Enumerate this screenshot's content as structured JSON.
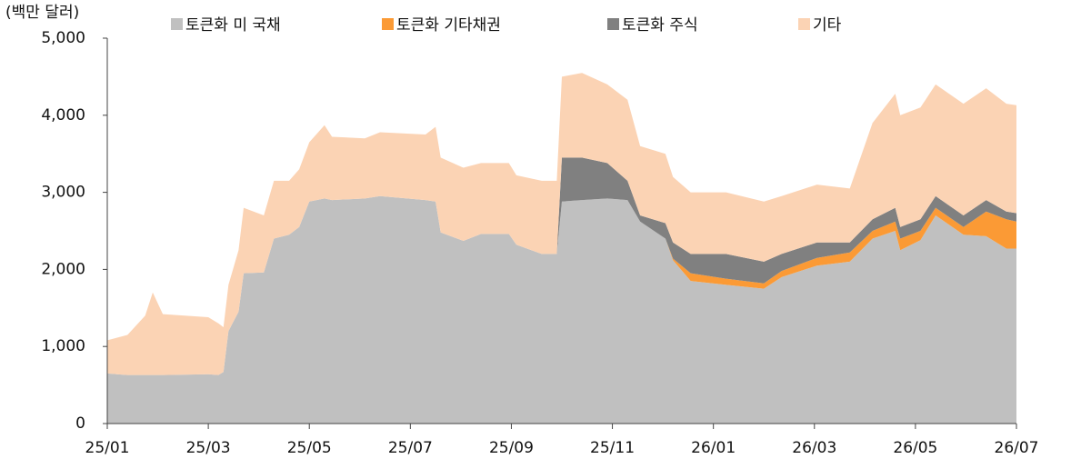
{
  "chart_data": {
    "type": "stacked_area",
    "y_label": "(백만 달러)",
    "legend": "top",
    "x": [
      0,
      0.4,
      0.75,
      0.9,
      1.1,
      2.0,
      2.2,
      2.3,
      2.4,
      2.6,
      2.7,
      3.1,
      3.3,
      3.6,
      3.8,
      4.0,
      4.3,
      4.45,
      5.1,
      5.4,
      6.3,
      6.5,
      6.6,
      7.05,
      7.4,
      7.95,
      8.1,
      8.6,
      8.9,
      9.0,
      9.4,
      9.9,
      10.3,
      10.55,
      11.05,
      11.2,
      11.55,
      12.25,
      13.0,
      13.35,
      14.05,
      14.7,
      15.15,
      15.6,
      15.7,
      16.1,
      16.4,
      16.95,
      17.4,
      17.8,
      18.0
    ],
    "series": [
      {
        "name": "토큰화 미 국채",
        "color": "#c0c0c0",
        "values": [
          650,
          630,
          630,
          630,
          630,
          640,
          630,
          670,
          1200,
          1450,
          1950,
          1960,
          2400,
          2450,
          2550,
          2880,
          2920,
          2900,
          2920,
          2950,
          2900,
          2880,
          2480,
          2370,
          2460,
          2460,
          2320,
          2200,
          2200,
          2880,
          2900,
          2920,
          2900,
          2620,
          2400,
          2120,
          1850,
          1800,
          1750,
          1900,
          2050,
          2100,
          2400,
          2500,
          2250,
          2380,
          2700,
          2450,
          2430,
          2270,
          2270
        ]
      },
      {
        "name": "토큰화 기타채권",
        "color": "#fb9a35",
        "values": [
          0,
          0,
          0,
          0,
          0,
          0,
          0,
          0,
          0,
          0,
          0,
          0,
          0,
          0,
          0,
          0,
          0,
          0,
          0,
          0,
          0,
          0,
          0,
          0,
          0,
          0,
          0,
          0,
          0,
          0,
          0,
          0,
          0,
          0,
          0,
          20,
          100,
          80,
          70,
          80,
          100,
          120,
          100,
          120,
          150,
          120,
          100,
          100,
          320,
          380,
          350
        ]
      },
      {
        "name": "토큰화 주식",
        "color": "#808080",
        "values": [
          0,
          0,
          0,
          0,
          0,
          0,
          0,
          0,
          0,
          0,
          0,
          0,
          0,
          0,
          0,
          0,
          0,
          0,
          0,
          0,
          0,
          0,
          0,
          0,
          0,
          0,
          0,
          0,
          0,
          570,
          550,
          460,
          250,
          80,
          200,
          210,
          250,
          320,
          280,
          220,
          200,
          130,
          150,
          180,
          150,
          150,
          150,
          150,
          150,
          100,
          110
        ]
      },
      {
        "name": "기타",
        "color": "#fbd3b4",
        "values": [
          430,
          520,
          770,
          1070,
          790,
          740,
          670,
          580,
          600,
          800,
          850,
          740,
          750,
          700,
          750,
          770,
          950,
          820,
          780,
          830,
          850,
          970,
          970,
          950,
          920,
          920,
          900,
          950,
          950,
          1050,
          1100,
          1020,
          1050,
          900,
          900,
          850,
          800,
          800,
          780,
          750,
          750,
          700,
          1250,
          1480,
          1450,
          1450,
          1450,
          1450,
          1450,
          1400,
          1400
        ]
      }
    ],
    "xlim": [
      0,
      18
    ],
    "xticks": [
      {
        "value": 0,
        "label": "25/01"
      },
      {
        "value": 2,
        "label": "25/03"
      },
      {
        "value": 4,
        "label": "25/05"
      },
      {
        "value": 6,
        "label": "25/07"
      },
      {
        "value": 8,
        "label": "25/09"
      },
      {
        "value": 10,
        "label": "25/11"
      },
      {
        "value": 12,
        "label": "26/01"
      },
      {
        "value": 14,
        "label": "26/03"
      },
      {
        "value": 16,
        "label": "26/05"
      },
      {
        "value": 18,
        "label": "26/07"
      }
    ],
    "ylim": [
      0,
      5000
    ],
    "yticks": [
      0,
      {
        "value": 1000,
        "label": "1,000"
      },
      {
        "value": 2000,
        "label": "2,000"
      },
      {
        "value": 3000,
        "label": "3,000"
      },
      {
        "value": 4000,
        "label": "4,000"
      },
      {
        "value": 5000,
        "label": "5,000"
      }
    ],
    "grid": false
  }
}
